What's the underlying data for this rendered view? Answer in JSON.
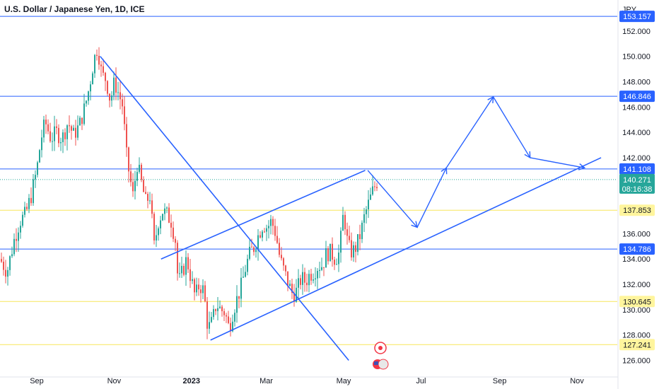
{
  "header": {
    "title": "U.S. Dollar / Japanese Yen, 1D, ICE"
  },
  "chart_data": {
    "type": "candlestick",
    "y_unit_label": "JPY",
    "ylim": [
      124.8,
      154.0
    ],
    "y_ticks": [
      "152.000",
      "150.000",
      "148.000",
      "146.000",
      "144.000",
      "142.000",
      "136.000",
      "134.000",
      "132.000",
      "130.000",
      "128.000",
      "126.000"
    ],
    "x_ticks": [
      {
        "label": "Sep",
        "date": "2022-09-01"
      },
      {
        "label": "Nov",
        "date": "2022-11-01"
      },
      {
        "label": "2023",
        "date": "2023-01-01"
      },
      {
        "label": "Mar",
        "date": "2023-03-01"
      },
      {
        "label": "May",
        "date": "2023-05-01"
      },
      {
        "label": "Jul",
        "date": "2023-07-01"
      },
      {
        "label": "Sep",
        "date": "2023-09-01"
      },
      {
        "label": "Nov",
        "date": "2023-11-01"
      }
    ],
    "levels": [
      {
        "value": 153.157,
        "label": "153.157",
        "color": "#2962ff"
      },
      {
        "value": 146.846,
        "label": "146.846",
        "color": "#2962ff"
      },
      {
        "value": 141.108,
        "label": "141.108",
        "color": "#2962ff"
      },
      {
        "value": 137.853,
        "label": "137.853",
        "color": "#f7e65a"
      },
      {
        "value": 134.786,
        "label": "134.786",
        "color": "#2962ff"
      },
      {
        "value": 130.645,
        "label": "130.645",
        "color": "#f7e65a"
      },
      {
        "value": 127.241,
        "label": "127.241",
        "color": "#f7e65a"
      }
    ],
    "last_price": {
      "value": 140.271,
      "label": "140.271",
      "countdown": "08:16:38"
    },
    "price_path": [
      [
        0,
        134.0
      ],
      [
        10,
        133.0
      ],
      [
        20,
        135.5
      ],
      [
        28,
        137.0
      ],
      [
        36,
        137.5
      ],
      [
        44,
        139.0
      ],
      [
        52,
        141.0
      ],
      [
        58,
        143.5
      ],
      [
        64,
        144.8
      ],
      [
        72,
        143.5
      ],
      [
        80,
        144.0
      ],
      [
        88,
        143.5
      ],
      [
        96,
        144.8
      ],
      [
        104,
        143.8
      ],
      [
        112,
        144.5
      ],
      [
        120,
        146.0
      ],
      [
        126,
        147.5
      ],
      [
        132,
        149.5
      ],
      [
        138,
        150.8
      ],
      [
        144,
        148.5
      ],
      [
        150,
        148.2
      ],
      [
        156,
        146.5
      ],
      [
        162,
        148.0
      ],
      [
        168,
        147.0
      ],
      [
        174,
        146.0
      ],
      [
        178,
        142.5
      ],
      [
        182,
        141.0
      ],
      [
        188,
        139.0
      ],
      [
        194,
        141.5
      ],
      [
        200,
        140.0
      ],
      [
        206,
        138.5
      ],
      [
        212,
        139.0
      ],
      [
        218,
        135.0
      ],
      [
        224,
        137.0
      ],
      [
        230,
        137.8
      ],
      [
        236,
        137.5
      ],
      [
        242,
        137.0
      ],
      [
        248,
        135.5
      ],
      [
        252,
        132.0
      ],
      [
        258,
        133.0
      ],
      [
        264,
        134.0
      ],
      [
        270,
        132.5
      ],
      [
        276,
        131.0
      ],
      [
        282,
        132.0
      ],
      [
        288,
        131.5
      ],
      [
        294,
        128.5
      ],
      [
        300,
        129.0
      ],
      [
        306,
        130.5
      ],
      [
        312,
        130.0
      ],
      [
        318,
        129.8
      ],
      [
        324,
        128.5
      ],
      [
        330,
        130.0
      ],
      [
        336,
        131.0
      ],
      [
        342,
        132.0
      ],
      [
        348,
        133.5
      ],
      [
        354,
        134.5
      ],
      [
        360,
        135.0
      ],
      [
        366,
        136.0
      ],
      [
        372,
        136.8
      ],
      [
        378,
        136.5
      ],
      [
        384,
        137.0
      ],
      [
        390,
        136.0
      ],
      [
        396,
        134.0
      ],
      [
        402,
        133.0
      ],
      [
        408,
        132.0
      ],
      [
        414,
        131.2
      ],
      [
        420,
        131.5
      ],
      [
        426,
        132.5
      ],
      [
        432,
        132.2
      ],
      [
        438,
        132.8
      ],
      [
        444,
        133.0
      ],
      [
        450,
        133.5
      ],
      [
        456,
        133.5
      ],
      [
        462,
        134.5
      ],
      [
        468,
        134.5
      ],
      [
        474,
        134.0
      ],
      [
        480,
        134.5
      ],
      [
        486,
        137.8
      ],
      [
        492,
        135.0
      ],
      [
        498,
        134.5
      ],
      [
        504,
        135.0
      ],
      [
        510,
        136.0
      ],
      [
        516,
        137.5
      ],
      [
        522,
        138.5
      ],
      [
        528,
        139.5
      ],
      [
        534,
        140.2
      ]
    ],
    "trendlines": [
      {
        "from": [
          "2022-10-21",
          150.0
        ],
        "to": [
          "2023-05-05",
          126.0
        ]
      },
      {
        "from": [
          "2022-12-08",
          134.0
        ],
        "to": [
          "2023-05-18",
          141.0
        ]
      },
      {
        "from": [
          "2023-01-16",
          127.6
        ],
        "to": [
          "2023-11-20",
          142.0
        ]
      }
    ],
    "projection_path": [
      [
        "2023-05-20",
        141.0
      ],
      [
        "2023-06-28",
        136.5
      ],
      [
        "2023-07-21",
        141.2
      ],
      [
        "2023-08-27",
        146.8
      ],
      [
        "2023-09-25",
        142.0
      ],
      [
        "2023-11-07",
        141.2
      ]
    ],
    "grid": false
  }
}
